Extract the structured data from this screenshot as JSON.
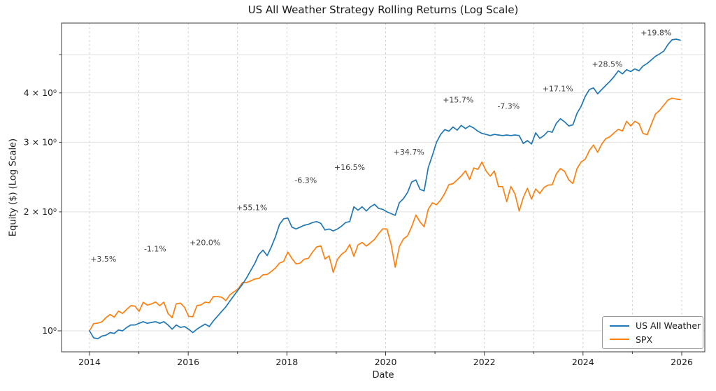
{
  "chart_data": {
    "type": "line",
    "title": "US All Weather Strategy Rolling Returns (Log Scale)",
    "xlabel": "Date",
    "ylabel": "Equity ($) (Log Scale)",
    "x_axis": {
      "start": "2014-01",
      "end": "2025-12",
      "frequency": "monthly",
      "n_points": 144,
      "tick_label_years": [
        2014,
        2016,
        2018,
        2020,
        2022,
        2024,
        2026
      ],
      "gridline_years": [
        2014,
        2015,
        2016,
        2017,
        2018,
        2019,
        2020,
        2021,
        2022,
        2023,
        2024,
        2025,
        2026
      ],
      "xlim_decimal_years": [
        2013.43,
        2026.47
      ]
    },
    "y_axis": {
      "scale": "log",
      "ylim": [
        0.885,
        6.0
      ],
      "ticks": [
        {
          "value": 1,
          "label": "10⁰"
        },
        {
          "value": 2,
          "label": "2 × 10⁰"
        },
        {
          "value": 3,
          "label": "3 × 10⁰"
        },
        {
          "value": 4,
          "label": "4 × 10⁰"
        },
        {
          "value": 5,
          "label": ""
        }
      ],
      "grid": true
    },
    "legend": {
      "position": "lower right"
    },
    "series": [
      {
        "name": "SPX",
        "color": "#ff7f0e",
        "values": [
          1.0,
          1.043,
          1.046,
          1.054,
          1.08,
          1.1,
          1.083,
          1.122,
          1.107,
          1.133,
          1.158,
          1.155,
          1.12,
          1.181,
          1.162,
          1.17,
          1.183,
          1.158,
          1.182,
          1.106,
          1.08,
          1.171,
          1.175,
          1.147,
          1.088,
          1.086,
          1.158,
          1.163,
          1.182,
          1.178,
          1.222,
          1.221,
          1.216,
          1.193,
          1.234,
          1.256,
          1.277,
          1.324,
          1.325,
          1.337,
          1.353,
          1.357,
          1.386,
          1.389,
          1.413,
          1.442,
          1.484,
          1.499,
          1.583,
          1.525,
          1.477,
          1.484,
          1.518,
          1.526,
          1.582,
          1.631,
          1.64,
          1.52,
          1.547,
          1.406,
          1.516,
          1.561,
          1.59,
          1.653,
          1.543,
          1.65,
          1.674,
          1.639,
          1.67,
          1.705,
          1.762,
          1.812,
          1.81,
          1.657,
          1.449,
          1.634,
          1.708,
          1.739,
          1.835,
          1.963,
          1.886,
          1.834,
          2.031,
          2.108,
          2.085,
          2.142,
          2.228,
          2.345,
          2.358,
          2.41,
          2.465,
          2.54,
          2.416,
          2.584,
          2.561,
          2.673,
          2.538,
          2.462,
          2.539,
          2.317,
          2.318,
          2.123,
          2.318,
          2.218,
          2.01,
          2.176,
          2.295,
          2.154,
          2.285,
          2.226,
          2.304,
          2.338,
          2.343,
          2.495,
          2.575,
          2.532,
          2.41,
          2.359,
          2.573,
          2.675,
          2.718,
          2.861,
          2.952,
          2.83,
          2.969,
          3.065,
          3.1,
          3.17,
          3.235,
          3.205,
          3.39,
          3.301,
          3.391,
          3.345,
          3.157,
          3.136,
          3.331,
          3.536,
          3.611,
          3.722,
          3.836,
          3.88,
          3.86,
          3.845
        ]
      },
      {
        "name": "US All Weather",
        "color": "#1f77b4",
        "values": [
          1.0,
          0.96,
          0.955,
          0.97,
          0.975,
          0.99,
          0.985,
          1.005,
          1.0,
          1.02,
          1.035,
          1.035,
          1.045,
          1.055,
          1.045,
          1.05,
          1.055,
          1.045,
          1.055,
          1.035,
          1.01,
          1.035,
          1.02,
          1.025,
          1.01,
          0.99,
          1.01,
          1.025,
          1.04,
          1.025,
          1.06,
          1.09,
          1.12,
          1.15,
          1.19,
          1.23,
          1.27,
          1.31,
          1.36,
          1.42,
          1.48,
          1.56,
          1.6,
          1.55,
          1.63,
          1.73,
          1.86,
          1.92,
          1.93,
          1.83,
          1.81,
          1.83,
          1.85,
          1.86,
          1.88,
          1.89,
          1.87,
          1.8,
          1.81,
          1.79,
          1.81,
          1.84,
          1.88,
          1.89,
          2.06,
          2.02,
          2.06,
          2.01,
          2.06,
          2.09,
          2.04,
          2.03,
          2.0,
          1.98,
          1.96,
          2.11,
          2.16,
          2.24,
          2.38,
          2.41,
          2.28,
          2.26,
          2.59,
          2.78,
          3.0,
          3.14,
          3.23,
          3.2,
          3.28,
          3.22,
          3.31,
          3.25,
          3.3,
          3.26,
          3.2,
          3.16,
          3.14,
          3.12,
          3.14,
          3.13,
          3.12,
          3.13,
          3.12,
          3.13,
          3.12,
          2.98,
          3.03,
          2.97,
          3.17,
          3.07,
          3.12,
          3.2,
          3.18,
          3.35,
          3.44,
          3.38,
          3.3,
          3.32,
          3.55,
          3.7,
          3.92,
          4.08,
          4.12,
          3.98,
          4.08,
          4.18,
          4.28,
          4.4,
          4.55,
          4.47,
          4.58,
          4.53,
          4.6,
          4.55,
          4.68,
          4.75,
          4.85,
          4.95,
          5.02,
          5.1,
          5.3,
          5.45,
          5.47,
          5.44
        ]
      }
    ],
    "legend_order": [
      "US All Weather",
      "SPX"
    ],
    "annotations": [
      {
        "label": "+3.5%",
        "x": 2014.28,
        "y": 1.52
      },
      {
        "label": "-1.1%",
        "x": 2015.33,
        "y": 1.61
      },
      {
        "label": "+20.0%",
        "x": 2016.34,
        "y": 1.67
      },
      {
        "label": "+55.1%",
        "x": 2017.29,
        "y": 2.05
      },
      {
        "label": "-6.3%",
        "x": 2018.38,
        "y": 2.4
      },
      {
        "label": "+16.5%",
        "x": 2019.27,
        "y": 2.59
      },
      {
        "label": "+34.7%",
        "x": 2020.47,
        "y": 2.83
      },
      {
        "label": "+15.7%",
        "x": 2021.47,
        "y": 3.84
      },
      {
        "label": "-7.3%",
        "x": 2022.49,
        "y": 3.7
      },
      {
        "label": "+17.1%",
        "x": 2023.49,
        "y": 4.1
      },
      {
        "label": "+28.5%",
        "x": 2024.49,
        "y": 4.72
      },
      {
        "label": "+19.8%",
        "x": 2025.48,
        "y": 5.67
      }
    ]
  }
}
